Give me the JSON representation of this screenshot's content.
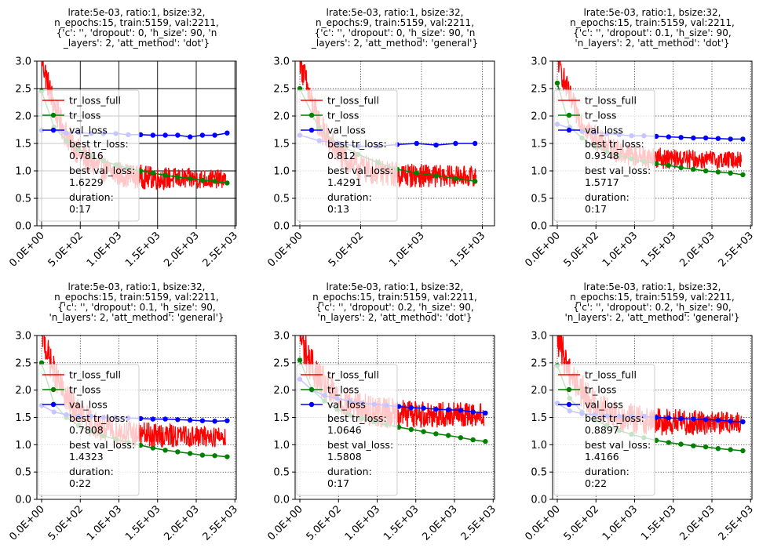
{
  "chart_data": [
    {
      "type": "line",
      "title": [
        "lrate:5e-03, ratio:1, bsize:32,",
        "n_epochs:15, train:5159, val:2211,",
        "{'c': '', 'dropout': 0, 'h_size': 90, 'n",
        "_layers': 2, 'att_method': 'dot'}"
      ],
      "xlim": [
        0,
        2500
      ],
      "ylim": [
        0,
        3
      ],
      "xticks": [
        0,
        500,
        1000,
        1500,
        2000,
        2500
      ],
      "xtick_labels": [
        "0.0E+00",
        "5.0E+02",
        "1.0E+03",
        "1.5E+03",
        "2.0E+03",
        "2.5E+03"
      ],
      "yticks": [
        0,
        0.5,
        1,
        1.5,
        2,
        2.5,
        3
      ],
      "ytick_labels": [
        "0.0",
        "0.5",
        "1.0",
        "1.5",
        "2.0",
        "2.5",
        "3.0"
      ],
      "grid": "solid",
      "legend_position": "lower-left",
      "legend_labels": [
        "tr_loss_full",
        "tr_loss",
        "val_loss"
      ],
      "best_tr_loss_label": "best tr_loss:",
      "best_tr_loss": "0.7816",
      "best_val_loss_label": "best val_loss:",
      "best_val_loss": "1.6229",
      "duration_label": "duration:",
      "duration": "0:17",
      "series": [
        {
          "name": "tr_loss_full",
          "color": "#ff0000",
          "start": 3.1,
          "end": 0.85,
          "x_end": 2380,
          "noise": 0.28
        },
        {
          "name": "tr_loss",
          "color": "#008000",
          "x": [
            0,
            160,
            320,
            480,
            640,
            800,
            960,
            1120,
            1280,
            1440,
            1600,
            1760,
            1920,
            2080,
            2240,
            2400
          ],
          "y": [
            2.45,
            1.8,
            1.55,
            1.38,
            1.27,
            1.18,
            1.11,
            1.05,
            1.0,
            0.96,
            0.92,
            0.89,
            0.86,
            0.83,
            0.81,
            0.78
          ]
        },
        {
          "name": "val_loss",
          "color": "#0000ff",
          "x": [
            0,
            160,
            320,
            480,
            640,
            800,
            960,
            1120,
            1280,
            1440,
            1600,
            1760,
            1920,
            2080,
            2240,
            2400
          ],
          "y": [
            1.74,
            1.74,
            1.69,
            1.7,
            1.68,
            1.68,
            1.68,
            1.66,
            1.66,
            1.65,
            1.65,
            1.65,
            1.62,
            1.65,
            1.65,
            1.69
          ]
        }
      ]
    },
    {
      "type": "line",
      "title": [
        "lrate:5e-03, ratio:1, bsize:32,",
        "n_epochs:9, train:5159, val:2211,",
        "{'c': '', 'dropout': 0, 'h_size': 90, 'n",
        "_layers': 2, 'att_method': 'general'}"
      ],
      "xlim": [
        0,
        1500
      ],
      "ylim": [
        0,
        3
      ],
      "xticks": [
        0,
        500,
        1000,
        1500
      ],
      "xtick_labels": [
        "0.0E+00",
        "5.0E+02",
        "1.0E+03",
        "1.5E+03"
      ],
      "yticks": [
        0,
        0.5,
        1,
        1.5,
        2,
        2.5,
        3
      ],
      "ytick_labels": [
        "0.0",
        "0.5",
        "1.0",
        "1.5",
        "2.0",
        "2.5",
        "3.0"
      ],
      "grid": "dotted",
      "legend_position": "lower-left",
      "legend_labels": [
        "tr_loss_full",
        "tr_loss",
        "val_loss"
      ],
      "best_tr_loss_label": "best tr_loss:",
      "best_tr_loss": "0.812",
      "best_val_loss_label": "best val_loss:",
      "best_val_loss": "1.4291",
      "duration_label": "duration:",
      "duration": "0:13",
      "series": [
        {
          "name": "tr_loss_full",
          "color": "#ff0000",
          "start": 3.1,
          "end": 0.9,
          "x_end": 1450,
          "noise": 0.3
        },
        {
          "name": "tr_loss",
          "color": "#008000",
          "x": [
            0,
            160,
            320,
            480,
            640,
            800,
            960,
            1120,
            1280,
            1440
          ],
          "y": [
            2.5,
            1.77,
            1.48,
            1.3,
            1.15,
            1.03,
            0.96,
            0.91,
            0.86,
            0.81
          ]
        },
        {
          "name": "val_loss",
          "color": "#0000ff",
          "x": [
            0,
            160,
            320,
            480,
            640,
            800,
            960,
            1120,
            1280,
            1440
          ],
          "y": [
            1.65,
            1.55,
            1.5,
            1.45,
            1.45,
            1.48,
            1.5,
            1.47,
            1.5,
            1.5
          ]
        }
      ]
    },
    {
      "type": "line",
      "title": [
        "lrate:5e-03, ratio:1, bsize:32,",
        "n_epochs:15, train:5159, val:2211,",
        "{'c': '', 'dropout': 0.1, 'h_size': 90,",
        "'n_layers': 2, 'att_method': 'dot'}"
      ],
      "xlim": [
        0,
        2500
      ],
      "ylim": [
        0,
        3
      ],
      "xticks": [
        0,
        500,
        1000,
        1500,
        2000,
        2500
      ],
      "xtick_labels": [
        "0.0E+00",
        "5.0E+02",
        "1.0E+03",
        "1.5E+03",
        "2.0E+03",
        "2.5E+03"
      ],
      "yticks": [
        0,
        0.5,
        1,
        1.5,
        2,
        2.5,
        3
      ],
      "ytick_labels": [
        "0.0",
        "0.5",
        "1.0",
        "1.5",
        "2.0",
        "2.5",
        "3.0"
      ],
      "grid": "dotted",
      "legend_position": "lower-left",
      "legend_labels": [
        "tr_loss_full",
        "tr_loss",
        "val_loss"
      ],
      "best_tr_loss_label": "best tr_loss:",
      "best_tr_loss": "0.9348",
      "best_val_loss_label": "best val_loss:",
      "best_val_loss": "1.5717",
      "duration_label": "duration:",
      "duration": "0:17",
      "series": [
        {
          "name": "tr_loss_full",
          "color": "#ff0000",
          "start": 3.1,
          "end": 1.2,
          "x_end": 2380,
          "noise": 0.25
        },
        {
          "name": "tr_loss",
          "color": "#008000",
          "x": [
            0,
            160,
            320,
            480,
            640,
            800,
            960,
            1120,
            1280,
            1440,
            1600,
            1760,
            1920,
            2080,
            2240,
            2400
          ],
          "y": [
            2.6,
            1.8,
            1.6,
            1.45,
            1.35,
            1.28,
            1.22,
            1.17,
            1.13,
            1.1,
            1.06,
            1.03,
            1.0,
            0.98,
            0.96,
            0.93
          ]
        },
        {
          "name": "val_loss",
          "color": "#0000ff",
          "x": [
            0,
            160,
            320,
            480,
            640,
            800,
            960,
            1120,
            1280,
            1440,
            1600,
            1760,
            1920,
            2080,
            2240,
            2400
          ],
          "y": [
            1.85,
            1.78,
            1.72,
            1.7,
            1.68,
            1.66,
            1.64,
            1.64,
            1.63,
            1.62,
            1.61,
            1.6,
            1.6,
            1.59,
            1.58,
            1.58
          ]
        }
      ]
    },
    {
      "type": "line",
      "title": [
        "lrate:5e-03, ratio:1, bsize:32,",
        "n_epochs:15, train:5159, val:2211,",
        "{'c': '', 'dropout': 0.1, 'h_size': 90,",
        "'n_layers': 2, 'att_method': 'general'}"
      ],
      "xlim": [
        0,
        2500
      ],
      "ylim": [
        0,
        3
      ],
      "xticks": [
        0,
        500,
        1000,
        1500,
        2000,
        2500
      ],
      "xtick_labels": [
        "0.0E+00",
        "5.0E+02",
        "1.0E+03",
        "1.5E+03",
        "2.0E+03",
        "2.5E+03"
      ],
      "yticks": [
        0,
        0.5,
        1,
        1.5,
        2,
        2.5,
        3
      ],
      "ytick_labels": [
        "0.0",
        "0.5",
        "1.0",
        "1.5",
        "2.0",
        "2.5",
        "3.0"
      ],
      "grid": "dotted",
      "legend_position": "lower-left",
      "legend_labels": [
        "tr_loss_full",
        "tr_loss",
        "val_loss"
      ],
      "best_tr_loss_label": "best tr_loss:",
      "best_tr_loss": "0.7808",
      "best_val_loss_label": "best val_loss:",
      "best_val_loss": "1.4323",
      "duration_label": "duration:",
      "duration": "0:22",
      "series": [
        {
          "name": "tr_loss_full",
          "color": "#ff0000",
          "start": 3.1,
          "end": 1.15,
          "x_end": 2380,
          "noise": 0.3
        },
        {
          "name": "tr_loss",
          "color": "#008000",
          "x": [
            0,
            160,
            320,
            480,
            640,
            800,
            960,
            1120,
            1280,
            1440,
            1600,
            1760,
            1920,
            2080,
            2240,
            2400
          ],
          "y": [
            2.5,
            1.75,
            1.5,
            1.35,
            1.25,
            1.16,
            1.1,
            1.04,
            0.99,
            0.94,
            0.9,
            0.87,
            0.84,
            0.81,
            0.8,
            0.78
          ]
        },
        {
          "name": "val_loss",
          "color": "#0000ff",
          "x": [
            0,
            160,
            320,
            480,
            640,
            800,
            960,
            1120,
            1280,
            1440,
            1600,
            1760,
            1920,
            2080,
            2240,
            2400
          ],
          "y": [
            1.72,
            1.6,
            1.55,
            1.52,
            1.52,
            1.5,
            1.5,
            1.49,
            1.48,
            1.47,
            1.47,
            1.46,
            1.45,
            1.44,
            1.43,
            1.44
          ]
        }
      ]
    },
    {
      "type": "line",
      "title": [
        "lrate:5e-03, ratio:1, bsize:32,",
        "n_epochs:15, train:5159, val:2211,",
        "{'c': '', 'dropout': 0.2, 'h_size': 90,",
        "'n_layers': 2, 'att_method': 'dot'}"
      ],
      "xlim": [
        0,
        2500
      ],
      "ylim": [
        0,
        3
      ],
      "xticks": [
        0,
        500,
        1000,
        1500,
        2000,
        2500
      ],
      "xtick_labels": [
        "0.0E+00",
        "5.0E+02",
        "1.0E+03",
        "1.5E+03",
        "2.0E+03",
        "2.5E+03"
      ],
      "yticks": [
        0,
        0.5,
        1,
        1.5,
        2,
        2.5,
        3
      ],
      "ytick_labels": [
        "0.0",
        "0.5",
        "1.0",
        "1.5",
        "2.0",
        "2.5",
        "3.0"
      ],
      "grid": "dotted",
      "legend_position": "lower-left",
      "legend_labels": [
        "tr_loss_full",
        "tr_loss",
        "val_loss"
      ],
      "best_tr_loss_label": "best tr_loss:",
      "best_tr_loss": "1.0646",
      "best_val_loss_label": "best val_loss:",
      "best_val_loss": "1.5808",
      "duration_label": "duration:",
      "duration": "0:17",
      "series": [
        {
          "name": "tr_loss_full",
          "color": "#ff0000",
          "start": 3.0,
          "end": 1.55,
          "x_end": 2380,
          "noise": 0.35
        },
        {
          "name": "tr_loss",
          "color": "#008000",
          "x": [
            0,
            160,
            320,
            480,
            640,
            800,
            960,
            1120,
            1280,
            1440,
            1600,
            1760,
            1920,
            2080,
            2240,
            2400
          ],
          "y": [
            2.55,
            2.0,
            1.8,
            1.65,
            1.55,
            1.48,
            1.42,
            1.37,
            1.32,
            1.28,
            1.24,
            1.2,
            1.17,
            1.13,
            1.09,
            1.06
          ]
        },
        {
          "name": "val_loss",
          "color": "#0000ff",
          "x": [
            0,
            160,
            320,
            480,
            640,
            800,
            960,
            1120,
            1280,
            1440,
            1600,
            1760,
            1920,
            2080,
            2240,
            2400
          ],
          "y": [
            2.2,
            2.0,
            1.9,
            1.85,
            1.8,
            1.76,
            1.74,
            1.72,
            1.7,
            1.68,
            1.67,
            1.65,
            1.64,
            1.63,
            1.6,
            1.58
          ]
        }
      ]
    },
    {
      "type": "line",
      "title": [
        "lrate:5e-03, ratio:1, bsize:32,",
        "n_epochs:15, train:5159, val:2211,",
        "{'c': '', 'dropout': 0.2, 'h_size': 90,",
        "'n_layers': 2, 'att_method': 'general'}"
      ],
      "xlim": [
        0,
        2500
      ],
      "ylim": [
        0,
        3
      ],
      "xticks": [
        0,
        500,
        1000,
        1500,
        2000,
        2500
      ],
      "xtick_labels": [
        "0.0E+00",
        "5.0E+02",
        "1.0E+03",
        "1.5E+03",
        "2.0E+03",
        "2.5E+03"
      ],
      "yticks": [
        0,
        0.5,
        1,
        1.5,
        2,
        2.5,
        3
      ],
      "ytick_labels": [
        "0.0",
        "0.5",
        "1.0",
        "1.5",
        "2.0",
        "2.5",
        "3.0"
      ],
      "grid": "dotted",
      "legend_position": "lower-left",
      "legend_labels": [
        "tr_loss_full",
        "tr_loss",
        "val_loss"
      ],
      "best_tr_loss_label": "best tr_loss:",
      "best_tr_loss": "0.8897",
      "best_val_loss_label": "best val_loss:",
      "best_val_loss": "1.4166",
      "duration_label": "duration:",
      "duration": "0:22",
      "series": [
        {
          "name": "tr_loss_full",
          "color": "#ff0000",
          "start": 3.0,
          "end": 1.4,
          "x_end": 2380,
          "noise": 0.33
        },
        {
          "name": "tr_loss",
          "color": "#008000",
          "x": [
            0,
            160,
            320,
            480,
            640,
            800,
            960,
            1120,
            1280,
            1440,
            1600,
            1760,
            1920,
            2080,
            2240,
            2400
          ],
          "y": [
            2.45,
            1.85,
            1.6,
            1.45,
            1.35,
            1.26,
            1.19,
            1.13,
            1.08,
            1.04,
            1.01,
            0.98,
            0.96,
            0.93,
            0.91,
            0.89
          ]
        },
        {
          "name": "val_loss",
          "color": "#0000ff",
          "x": [
            0,
            160,
            320,
            480,
            640,
            800,
            960,
            1120,
            1280,
            1440,
            1600,
            1760,
            1920,
            2080,
            2240,
            2400
          ],
          "y": [
            1.76,
            1.62,
            1.57,
            1.55,
            1.53,
            1.52,
            1.52,
            1.52,
            1.5,
            1.49,
            1.48,
            1.47,
            1.46,
            1.45,
            1.43,
            1.42
          ]
        }
      ]
    }
  ]
}
